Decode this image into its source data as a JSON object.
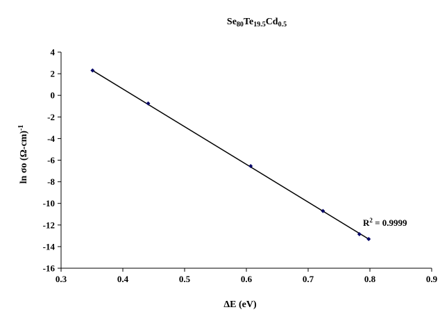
{
  "chart_data": {
    "type": "scatter",
    "title": "Se₈₀Te₁₉.₅Cd₀.₅",
    "title_parts": [
      {
        "text": "Se",
        "sub": false
      },
      {
        "text": "80",
        "sub": true
      },
      {
        "text": "Te",
        "sub": false
      },
      {
        "text": "19.5",
        "sub": true
      },
      {
        "text": "Cd",
        "sub": false
      },
      {
        "text": "0.5",
        "sub": true
      }
    ],
    "xlabel": "ΔE (eV)",
    "ylabel_main": "ln σo (Ω-cm)",
    "ylabel_sup": "-1",
    "xlim": [
      0.3,
      0.9
    ],
    "ylim": [
      -16,
      4
    ],
    "xticks": [
      0.3,
      0.4,
      0.5,
      0.6,
      0.7,
      0.8,
      0.9
    ],
    "yticks": [
      -16,
      -14,
      -12,
      -10,
      -8,
      -6,
      -4,
      -2,
      0,
      2,
      4
    ],
    "series": [
      {
        "x": [
          0.351,
          0.441,
          0.607,
          0.724,
          0.783,
          0.798
        ],
        "y": [
          2.3,
          -0.75,
          -6.55,
          -10.7,
          -12.85,
          -13.3
        ]
      }
    ],
    "trendline": {
      "x": [
        0.351,
        0.798
      ],
      "y": [
        2.3,
        -13.3
      ]
    },
    "annotation": {
      "r2_main": "R",
      "r2_sup": "2",
      "r2_rest": " = 0.9999"
    },
    "grid": false,
    "legend": "none",
    "colors": {
      "marker": "#000066",
      "line": "#000000",
      "axis": "#000000"
    }
  }
}
